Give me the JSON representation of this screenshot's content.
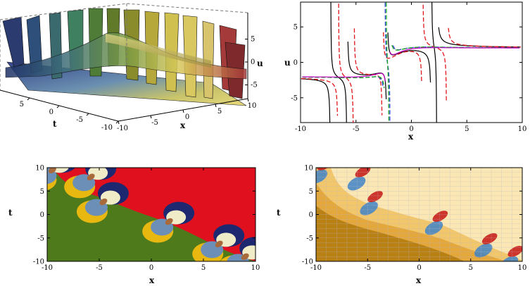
{
  "panels": {
    "surface3d": {
      "type": "3d-surface",
      "xlabel": "x",
      "ylabel": "t",
      "zlabel": "u",
      "xticks": [
        "-10",
        "-5",
        "0",
        "5",
        "10"
      ],
      "yticks": [
        "-10",
        "-5",
        "0",
        "5",
        "10"
      ],
      "zticks": [
        "-5",
        "0",
        "5"
      ]
    },
    "curves2d": {
      "type": "line",
      "xlabel": "x",
      "ylabel": "u",
      "xlim": [
        -10,
        10
      ],
      "ylim": [
        -8.5,
        8.5
      ],
      "xticks": [
        "-10",
        "-5",
        "0",
        "5",
        "10"
      ],
      "yticks": [
        "-5",
        "0",
        "5"
      ],
      "colors": [
        "#000000",
        "#e0151b",
        "#2b3fd6",
        "#18a81e",
        "#c400c4"
      ]
    },
    "contour": {
      "type": "contour",
      "xlabel": "x",
      "ylabel": "t",
      "xlim": [
        -10,
        10
      ],
      "ylim": [
        -10,
        10
      ],
      "xticks": [
        "-10",
        "-5",
        "0",
        "5",
        "10"
      ],
      "yticks": [
        "-10",
        "-5",
        "0",
        "5",
        "10"
      ],
      "colors": [
        "#e0101e",
        "#4e7a1c",
        "#1d2870",
        "#e8b810",
        "#f0ecc8",
        "#6c8fb8"
      ]
    },
    "density": {
      "type": "density",
      "xlabel": "x",
      "ylabel": "t",
      "xlim": [
        -10,
        10
      ],
      "ylim": [
        -10,
        10
      ],
      "xticks": [
        "-10",
        "-5",
        "0",
        "5",
        "10"
      ],
      "yticks": [
        "-10",
        "-5",
        "0",
        "5",
        "10"
      ],
      "colors": [
        "#fbe7b4",
        "#f2c66a",
        "#e3a73c",
        "#b98114",
        "#3e82c8",
        "#c8201c"
      ]
    }
  },
  "chart_data": [
    {
      "type": "heatmap",
      "title": "",
      "xlabel": "x",
      "ylabel": "t",
      "zlabel": "u",
      "xrange": [
        -10,
        10
      ],
      "yrange": [
        -10,
        10
      ],
      "zrange": [
        -8,
        8
      ]
    },
    {
      "type": "line",
      "title": "",
      "xlabel": "x",
      "ylabel": "u",
      "xlim": [
        -10,
        10
      ],
      "ylim": [
        -8.5,
        8.5
      ],
      "series": [
        {
          "style": "solid",
          "color": "#000000",
          "poles": [
            -7.3,
            -5.8,
            -2.2,
            1.8,
            2.3
          ],
          "left_level": -2,
          "right_level": 2
        },
        {
          "style": "dashed",
          "color": "#e0151b",
          "poles": [
            -6.6,
            -5.2,
            -2.6,
            1.0,
            3.2
          ],
          "left_level": -2,
          "right_level": 2
        },
        {
          "style": "dashed",
          "color": "#2b3fd6",
          "poles": [
            -2.4,
            -1.9
          ],
          "left_level": -2,
          "right_level": 2
        },
        {
          "style": "dashed",
          "color": "#18a81e",
          "poles": [
            -2.3,
            -2.0
          ],
          "left_level": -2,
          "right_level": 2
        },
        {
          "style": "solid",
          "color": "#c400c4",
          "poles": [
            -2.2
          ],
          "left_level": -2,
          "right_level": 2
        }
      ]
    },
    {
      "type": "heatmap",
      "title": "",
      "xlabel": "x",
      "ylabel": "t",
      "xlim": [
        -10,
        10
      ],
      "ylim": [
        -10,
        10
      ],
      "singular_points": [
        [
          -9.5,
          9.5
        ],
        [
          -5.8,
          8.0
        ],
        [
          -4.6,
          2.7
        ],
        [
          1.7,
          -1.5
        ],
        [
          6.5,
          -6.3
        ],
        [
          9.0,
          -9.0
        ]
      ]
    },
    {
      "type": "heatmap",
      "title": "",
      "xlabel": "x",
      "ylabel": "t",
      "xlim": [
        -10,
        10
      ],
      "ylim": [
        -10,
        10
      ],
      "singular_points": [
        [
          -9.5,
          9.5
        ],
        [
          -5.8,
          8.0
        ],
        [
          -4.6,
          2.7
        ],
        [
          1.7,
          -1.5
        ],
        [
          6.5,
          -6.3
        ],
        [
          9.0,
          -9.0
        ]
      ]
    }
  ]
}
